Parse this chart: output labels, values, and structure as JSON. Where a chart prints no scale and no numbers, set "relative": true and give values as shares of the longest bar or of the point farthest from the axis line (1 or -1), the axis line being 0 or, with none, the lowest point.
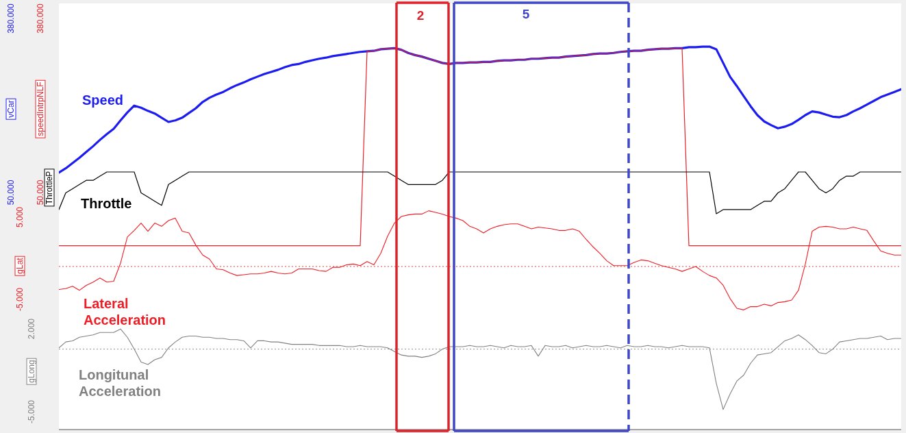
{
  "chart_data": [
    {
      "type": "line",
      "categories": [
        null,
        null,
        null,
        null,
        null,
        null,
        null,
        null,
        null,
        null,
        null,
        null,
        null,
        null,
        null,
        null,
        null,
        null,
        null,
        null,
        null,
        null,
        null,
        null,
        null,
        null,
        null,
        null,
        null,
        null,
        null,
        null,
        null,
        null,
        null,
        null,
        null,
        null,
        null,
        null,
        null,
        null,
        null,
        null,
        null,
        null,
        null,
        null,
        null,
        null,
        null,
        null,
        null,
        null,
        null,
        null,
        null,
        null,
        null,
        null,
        null,
        null,
        null,
        null,
        null,
        null,
        null,
        null,
        null,
        null,
        null,
        null,
        null,
        null,
        null,
        null,
        null,
        null,
        null,
        null,
        null,
        null,
        null,
        null,
        null,
        null,
        null,
        null,
        null,
        null,
        null,
        null,
        null,
        null,
        null,
        null,
        null,
        null,
        null,
        null,
        null,
        null,
        null,
        null,
        null,
        null,
        null,
        null,
        null,
        null,
        null,
        null,
        null,
        null,
        null,
        null,
        null,
        null,
        null,
        null,
        null,
        null,
        null,
        null
      ],
      "series": [
        {
          "name": "Speed",
          "color": "#1c1cf0",
          "values": [
            88,
            96,
            106,
            116,
            127,
            138,
            150,
            161,
            171,
            187,
            202,
            215,
            211,
            205,
            200,
            192,
            184,
            187,
            192,
            201,
            210,
            222,
            230,
            236,
            241,
            248,
            254,
            259,
            265,
            270,
            275,
            279,
            283,
            288,
            292,
            294,
            298,
            301,
            304,
            306,
            309,
            311,
            313,
            315,
            317,
            318,
            319,
            322,
            323,
            324,
            321,
            315,
            311,
            308,
            304,
            300,
            296,
            294,
            296,
            296,
            297,
            297,
            298,
            298,
            300,
            301,
            301,
            302,
            302,
            304,
            304,
            305,
            306,
            306,
            308,
            309,
            310,
            311,
            313,
            314,
            314,
            315,
            317,
            318,
            319,
            319,
            321,
            322,
            323,
            323,
            324,
            324,
            326,
            326,
            327,
            327,
            322,
            296,
            270,
            252,
            233,
            214,
            197,
            185,
            178,
            172,
            175,
            180,
            188,
            197,
            204,
            202,
            198,
            194,
            193,
            197,
            204,
            210,
            217,
            224,
            231,
            236,
            241,
            246
          ]
        },
        {
          "color": "#e8202a",
          "axis": "y2",
          "values": [
            -51,
            -51,
            -51,
            -51,
            -51,
            -51,
            -51,
            -51,
            -51,
            -51,
            -51,
            -51,
            -51,
            -51,
            -51,
            -51,
            -51,
            -51,
            -51,
            -51,
            -51,
            -51,
            -51,
            -51,
            -51,
            -51,
            -51,
            -51,
            -51,
            -51,
            -51,
            -51,
            -51,
            -51,
            -51,
            -51,
            -51,
            -51,
            -51,
            -51,
            -51,
            -51,
            -51,
            -51,
            -51,
            318,
            319,
            322,
            323,
            324,
            321,
            315,
            311,
            308,
            304,
            300,
            296,
            294,
            296,
            296,
            297,
            297,
            298,
            298,
            300,
            301,
            301,
            302,
            302,
            304,
            304,
            305,
            306,
            306,
            308,
            309,
            310,
            311,
            313,
            314,
            314,
            315,
            317,
            318,
            319,
            319,
            321,
            322,
            323,
            323,
            324,
            324,
            -51,
            -51,
            -51,
            -51,
            -51,
            -51,
            -51,
            -51,
            -51,
            -51,
            -51,
            -51,
            -51,
            -51,
            -51,
            -51,
            -51,
            -51,
            -51,
            -51,
            -51,
            -51,
            -51,
            -51,
            -51,
            -51,
            -51,
            -51,
            -51,
            -51,
            -51,
            -51
          ]
        }
      ],
      "ylabel": "vCar",
      "y2label": "speedIntrpNLF",
      "ylim": [
        -400,
        409
      ],
      "yticks": [
        {
          "value": 50,
          "label": "50.000"
        },
        {
          "value": 380,
          "label": "380.000"
        }
      ],
      "y2lim": [
        -400,
        409
      ],
      "y2ticks": [
        {
          "value": 50,
          "label": "50.000"
        },
        {
          "value": 380,
          "label": "380.000"
        }
      ],
      "annotations": [
        "2",
        "5"
      ],
      "tick_labels": "y"
    },
    {
      "type": "line",
      "relative": true,
      "categories": [
        null,
        null,
        null,
        null,
        null,
        null,
        null,
        null,
        null,
        null,
        null,
        null,
        null,
        null,
        null,
        null,
        null,
        null,
        null,
        null,
        null,
        null,
        null,
        null,
        null,
        null,
        null,
        null,
        null,
        null,
        null,
        null,
        null,
        null,
        null,
        null,
        null,
        null,
        null,
        null,
        null,
        null,
        null,
        null,
        null,
        null,
        null,
        null,
        null,
        null,
        null,
        null,
        null,
        null,
        null,
        null,
        null,
        null,
        null,
        null,
        null,
        null,
        null,
        null,
        null,
        null,
        null,
        null,
        null,
        null,
        null,
        null,
        null,
        null,
        null,
        null,
        null,
        null,
        null,
        null,
        null,
        null,
        null,
        null,
        null,
        null,
        null,
        null,
        null,
        null,
        null,
        null,
        null,
        null,
        null,
        null,
        null,
        null,
        null,
        null,
        null,
        null,
        null,
        null,
        null,
        null,
        null,
        null,
        null,
        null,
        null,
        null,
        null,
        null,
        null,
        null,
        null,
        null,
        null,
        null,
        null,
        null,
        null,
        null
      ],
      "series": [
        {
          "name": "Throttle",
          "color": "#000000",
          "values": [
            0.1,
            0.5,
            0.6,
            0.7,
            0.8,
            0.8,
            0.9,
            1,
            1,
            1,
            1,
            1,
            0.5,
            0.4,
            0.3,
            0.2,
            0.7,
            0.8,
            0.9,
            1,
            1,
            1,
            1,
            1,
            1,
            1,
            1,
            1,
            1,
            1,
            1,
            1,
            1,
            1,
            1,
            1,
            1,
            1,
            1,
            1,
            1,
            1,
            1,
            1,
            1,
            1,
            1,
            1,
            1,
            0.9,
            0.8,
            0.7,
            0.7,
            0.7,
            0.7,
            0.7,
            0.8,
            1,
            1,
            1,
            1,
            1,
            1,
            1,
            1,
            1,
            1,
            1,
            1,
            1,
            1,
            1,
            1,
            1,
            1,
            1,
            1,
            1,
            1,
            1,
            1,
            1,
            1,
            1,
            1,
            1,
            1,
            1,
            1,
            1,
            1,
            1,
            1,
            1,
            1,
            1,
            0,
            0.1,
            0.1,
            0.1,
            0.1,
            0.1,
            0.2,
            0.3,
            0.3,
            0.5,
            0.6,
            0.8,
            1,
            1,
            0.8,
            0.6,
            0.5,
            0.6,
            0.8,
            0.9,
            0.9,
            1,
            1,
            1,
            1,
            1,
            1,
            1
          ]
        }
      ],
      "ylabel": "ThrottleP",
      "tick_labels": false
    },
    {
      "type": "line",
      "categories": [
        null,
        null,
        null,
        null,
        null,
        null,
        null,
        null,
        null,
        null,
        null,
        null,
        null,
        null,
        null,
        null,
        null,
        null,
        null,
        null,
        null,
        null,
        null,
        null,
        null,
        null,
        null,
        null,
        null,
        null,
        null,
        null,
        null,
        null,
        null,
        null,
        null,
        null,
        null,
        null,
        null,
        null,
        null,
        null,
        null,
        null,
        null,
        null,
        null,
        null,
        null,
        null,
        null,
        null,
        null,
        null,
        null,
        null,
        null,
        null,
        null,
        null,
        null,
        null,
        null,
        null,
        null,
        null,
        null,
        null,
        null,
        null,
        null,
        null,
        null,
        null,
        null,
        null,
        null,
        null,
        null,
        null,
        null,
        null,
        null,
        null,
        null,
        null,
        null,
        null,
        null,
        null,
        null,
        null,
        null,
        null,
        null,
        null,
        null,
        null,
        null,
        null,
        null,
        null,
        null,
        null,
        null,
        null,
        null,
        null,
        null,
        null,
        null,
        null,
        null,
        null,
        null,
        null,
        null,
        null,
        null,
        null,
        null,
        null
      ],
      "series": [
        {
          "name": "Lateral Acceleration",
          "color": "#ee1c24",
          "values": [
            -3.8,
            -3.7,
            -3.4,
            -3.9,
            -3.3,
            -2.9,
            -2.4,
            -2.9,
            -2.8,
            -0.6,
            2.6,
            3.4,
            4.3,
            3.3,
            4.3,
            3.9,
            4.6,
            4.9,
            3.3,
            3.1,
            1.6,
            0.4,
            -0.1,
            -1.3,
            -1.4,
            -1.8,
            -2.1,
            -2.0,
            -1.9,
            -1.9,
            -1.8,
            -1.6,
            -1.8,
            -1.9,
            -1.8,
            -1.3,
            -1.3,
            -1.3,
            -1.5,
            -1.6,
            -1.1,
            -1.1,
            -0.8,
            -0.7,
            -0.9,
            -0.4,
            -0.8,
            0.6,
            2.7,
            4.3,
            5.1,
            5.3,
            5.4,
            5.4,
            5.8,
            5.6,
            5.4,
            5.1,
            4.9,
            4.6,
            3.9,
            3.6,
            3.1,
            3.6,
            3.9,
            4.1,
            4.2,
            4.2,
            3.9,
            3.6,
            3.8,
            3.7,
            3.6,
            3.4,
            3.4,
            3.6,
            3.3,
            2.3,
            1.4,
            0.6,
            -0.3,
            -0.9,
            -0.9,
            -0.9,
            -0.5,
            -0.2,
            -0.3,
            -0.6,
            -0.9,
            -1.1,
            -1.3,
            -1.6,
            -1.3,
            -1.0,
            -1.6,
            -2.1,
            -2.4,
            -3.3,
            -4.9,
            -6.1,
            -6.3,
            -5.9,
            -5.9,
            -5.6,
            -5.8,
            -5.4,
            -5.3,
            -5.1,
            -3.9,
            -0.7,
            3.3,
            3.8,
            3.9,
            3.8,
            3.6,
            3.6,
            3.8,
            3.6,
            3.4,
            2.1,
            0.9,
            0.6,
            0.4,
            0.4
          ]
        }
      ],
      "ylabel": "gLat",
      "ylim": [
        -20.9,
        31.1
      ],
      "yticks": [
        {
          "value": -5,
          "label": "-5.000"
        },
        {
          "value": 5,
          "label": "5.000"
        }
      ],
      "ref_lines": [
        {
          "axis": "y",
          "value": -1.0,
          "color": "#e04848",
          "line_style": "dotted"
        }
      ],
      "tick_labels": "y"
    },
    {
      "type": "line",
      "categories": [
        null,
        null,
        null,
        null,
        null,
        null,
        null,
        null,
        null,
        null,
        null,
        null,
        null,
        null,
        null,
        null,
        null,
        null,
        null,
        null,
        null,
        null,
        null,
        null,
        null,
        null,
        null,
        null,
        null,
        null,
        null,
        null,
        null,
        null,
        null,
        null,
        null,
        null,
        null,
        null,
        null,
        null,
        null,
        null,
        null,
        null,
        null,
        null,
        null,
        null,
        null,
        null,
        null,
        null,
        null,
        null,
        null,
        null,
        null,
        null,
        null,
        null,
        null,
        null,
        null,
        null,
        null,
        null,
        null,
        null,
        null,
        null,
        null,
        null,
        null,
        null,
        null,
        null,
        null,
        null,
        null,
        null,
        null,
        null,
        null,
        null,
        null,
        null,
        null,
        null,
        null,
        null,
        null,
        null,
        null,
        null,
        null,
        null,
        null,
        null,
        null,
        null,
        null,
        null,
        null,
        null,
        null,
        null,
        null,
        null,
        null,
        null,
        null,
        null,
        null,
        null,
        null,
        null,
        null,
        null,
        null,
        null,
        null,
        null
      ],
      "series": [
        {
          "name": "Longitunal Acceleration",
          "color": "#808080",
          "values": [
            0.4,
            0.9,
            1.0,
            1.3,
            1.4,
            1.5,
            1.7,
            1.7,
            1.7,
            2.0,
            1.3,
            0.3,
            -0.8,
            -1.0,
            -0.6,
            -0.4,
            0.4,
            0.9,
            1.3,
            1.4,
            1.4,
            1.3,
            1.3,
            1.2,
            1.2,
            1.1,
            1.1,
            1.0,
            0.4,
            1.0,
            1.0,
            0.9,
            0.9,
            0.8,
            0.7,
            0.7,
            0.7,
            0.7,
            0.6,
            0.6,
            0.6,
            0.6,
            0.5,
            0.5,
            0.6,
            0.5,
            0.5,
            0.5,
            0.4,
            0.1,
            -0.2,
            -0.3,
            -0.3,
            -0.4,
            -0.3,
            -0.1,
            0.3,
            0.5,
            0.5,
            0.5,
            0.6,
            0.5,
            0.5,
            0.6,
            0.5,
            0.4,
            0.6,
            0.5,
            0.5,
            0.6,
            -0.3,
            0.6,
            0.5,
            0.5,
            0.6,
            0.4,
            0.5,
            0.6,
            0.5,
            0.5,
            0.6,
            0.5,
            0.4,
            0.6,
            0.5,
            0.5,
            0.6,
            0.5,
            0.5,
            0.4,
            0.5,
            0.6,
            0.5,
            0.5,
            0.5,
            0.4,
            -2.6,
            -4.8,
            -3.5,
            -2.4,
            -1.9,
            -0.9,
            -0.2,
            -0.1,
            0.0,
            0.5,
            1.0,
            1.2,
            1.5,
            1.1,
            0.6,
            0.0,
            -0.1,
            0.3,
            0.9,
            1.0,
            1.1,
            1.2,
            1.2,
            1.3,
            1.4,
            1.1,
            1.2,
            1.2
          ]
        }
      ],
      "ylabel": "gLong",
      "ylim": [
        -6.5,
        29.5
      ],
      "yticks": [
        {
          "value": -5,
          "label": "-5.000"
        },
        {
          "value": 2,
          "label": "2.000"
        }
      ],
      "ref_lines": [
        {
          "axis": "y",
          "value": 0.3,
          "color": "#909090",
          "line_style": "dotted"
        }
      ],
      "tick_labels": "y"
    }
  ]
}
